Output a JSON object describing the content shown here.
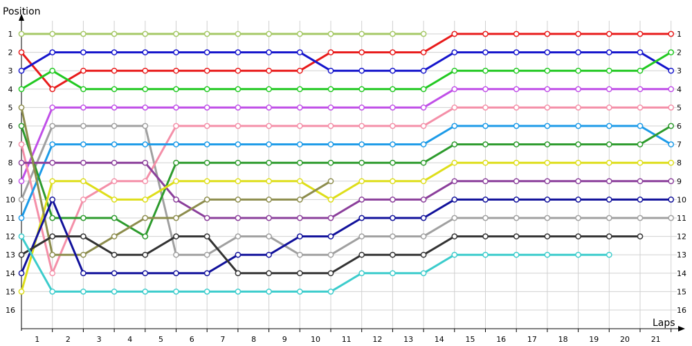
{
  "chart_data": {
    "type": "line",
    "title": "",
    "xlabel": "Laps",
    "ylabel": "Position",
    "grid": true,
    "y_inverted": true,
    "xlim": [
      0,
      21
    ],
    "ylim": [
      1,
      16
    ],
    "x_ticks": [
      1,
      2,
      3,
      4,
      5,
      6,
      7,
      8,
      9,
      10,
      11,
      12,
      13,
      14,
      15,
      16,
      17,
      18,
      19,
      20,
      21
    ],
    "y_ticks": [
      1,
      2,
      3,
      4,
      5,
      6,
      7,
      8,
      9,
      10,
      11,
      12,
      13,
      14,
      15,
      16
    ],
    "colors": {
      "grid": "#d0d0d0",
      "axis": "#000000"
    },
    "series": [
      {
        "color": "#a5c866",
        "points": [
          [
            0,
            1
          ],
          [
            1,
            1
          ],
          [
            2,
            1
          ],
          [
            3,
            1
          ],
          [
            4,
            1
          ],
          [
            5,
            1
          ],
          [
            6,
            1
          ],
          [
            7,
            1
          ],
          [
            8,
            1
          ],
          [
            9,
            1
          ],
          [
            10,
            1
          ],
          [
            11,
            1
          ],
          [
            12,
            1
          ],
          [
            13,
            1
          ]
        ]
      },
      {
        "color": "#e81b1b",
        "points": [
          [
            0,
            2
          ],
          [
            1,
            4
          ],
          [
            2,
            3
          ],
          [
            3,
            3
          ],
          [
            4,
            3
          ],
          [
            5,
            3
          ],
          [
            6,
            3
          ],
          [
            7,
            3
          ],
          [
            8,
            3
          ],
          [
            9,
            3
          ],
          [
            10,
            2
          ],
          [
            11,
            2
          ],
          [
            12,
            2
          ],
          [
            13,
            2
          ],
          [
            14,
            1
          ],
          [
            15,
            1
          ],
          [
            16,
            1
          ],
          [
            17,
            1
          ],
          [
            18,
            1
          ],
          [
            19,
            1
          ],
          [
            20,
            1
          ],
          [
            21,
            1
          ]
        ]
      },
      {
        "color": "#1515cc",
        "points": [
          [
            0,
            3
          ],
          [
            1,
            2
          ],
          [
            2,
            2
          ],
          [
            3,
            2
          ],
          [
            4,
            2
          ],
          [
            5,
            2
          ],
          [
            6,
            2
          ],
          [
            7,
            2
          ],
          [
            8,
            2
          ],
          [
            9,
            2
          ],
          [
            10,
            3
          ],
          [
            11,
            3
          ],
          [
            12,
            3
          ],
          [
            13,
            3
          ],
          [
            14,
            2
          ],
          [
            15,
            2
          ],
          [
            16,
            2
          ],
          [
            17,
            2
          ],
          [
            18,
            2
          ],
          [
            19,
            2
          ],
          [
            20,
            2
          ],
          [
            21,
            3
          ]
        ]
      },
      {
        "color": "#22c922",
        "points": [
          [
            0,
            4
          ],
          [
            1,
            3
          ],
          [
            2,
            4
          ],
          [
            3,
            4
          ],
          [
            4,
            4
          ],
          [
            5,
            4
          ],
          [
            6,
            4
          ],
          [
            7,
            4
          ],
          [
            8,
            4
          ],
          [
            9,
            4
          ],
          [
            10,
            4
          ],
          [
            11,
            4
          ],
          [
            12,
            4
          ],
          [
            13,
            4
          ],
          [
            14,
            3
          ],
          [
            15,
            3
          ],
          [
            16,
            3
          ],
          [
            17,
            3
          ],
          [
            18,
            3
          ],
          [
            19,
            3
          ],
          [
            20,
            3
          ],
          [
            21,
            2
          ]
        ]
      },
      {
        "color": "#c04fe8",
        "points": [
          [
            0,
            9
          ],
          [
            1,
            5
          ],
          [
            2,
            5
          ],
          [
            3,
            5
          ],
          [
            4,
            5
          ],
          [
            5,
            5
          ],
          [
            6,
            5
          ],
          [
            7,
            5
          ],
          [
            8,
            5
          ],
          [
            9,
            5
          ],
          [
            10,
            5
          ],
          [
            11,
            5
          ],
          [
            12,
            5
          ],
          [
            13,
            5
          ],
          [
            14,
            4
          ],
          [
            15,
            4
          ],
          [
            16,
            4
          ],
          [
            17,
            4
          ],
          [
            18,
            4
          ],
          [
            19,
            4
          ],
          [
            20,
            4
          ],
          [
            21,
            4
          ]
        ]
      },
      {
        "color": "#a0a0a0",
        "points": [
          [
            0,
            10
          ],
          [
            1,
            6
          ],
          [
            2,
            6
          ],
          [
            3,
            6
          ],
          [
            4,
            6
          ],
          [
            5,
            13
          ],
          [
            6,
            13
          ],
          [
            7,
            12
          ],
          [
            8,
            12
          ],
          [
            9,
            13
          ],
          [
            10,
            13
          ],
          [
            11,
            12
          ],
          [
            12,
            12
          ],
          [
            13,
            12
          ],
          [
            14,
            11
          ],
          [
            15,
            11
          ],
          [
            16,
            11
          ],
          [
            17,
            11
          ],
          [
            18,
            11
          ],
          [
            19,
            11
          ],
          [
            20,
            11
          ],
          [
            21,
            11
          ]
        ]
      },
      {
        "color": "#f48fa8",
        "points": [
          [
            0,
            7
          ],
          [
            1,
            14
          ],
          [
            2,
            10
          ],
          [
            3,
            9
          ],
          [
            4,
            9
          ],
          [
            5,
            6
          ],
          [
            6,
            6
          ],
          [
            7,
            6
          ],
          [
            8,
            6
          ],
          [
            9,
            6
          ],
          [
            10,
            6
          ],
          [
            11,
            6
          ],
          [
            12,
            6
          ],
          [
            13,
            6
          ],
          [
            14,
            5
          ],
          [
            15,
            5
          ],
          [
            16,
            5
          ],
          [
            17,
            5
          ],
          [
            18,
            5
          ],
          [
            19,
            5
          ],
          [
            20,
            5
          ],
          [
            21,
            5
          ]
        ]
      },
      {
        "color": "#1d9be8",
        "points": [
          [
            0,
            11
          ],
          [
            1,
            7
          ],
          [
            2,
            7
          ],
          [
            3,
            7
          ],
          [
            4,
            7
          ],
          [
            5,
            7
          ],
          [
            6,
            7
          ],
          [
            7,
            7
          ],
          [
            8,
            7
          ],
          [
            9,
            7
          ],
          [
            10,
            7
          ],
          [
            11,
            7
          ],
          [
            12,
            7
          ],
          [
            13,
            7
          ],
          [
            14,
            6
          ],
          [
            15,
            6
          ],
          [
            16,
            6
          ],
          [
            17,
            6
          ],
          [
            18,
            6
          ],
          [
            19,
            6
          ],
          [
            20,
            6
          ],
          [
            21,
            7
          ]
        ]
      },
      {
        "color": "#2d9b2d",
        "points": [
          [
            0,
            6
          ],
          [
            1,
            11
          ],
          [
            2,
            11
          ],
          [
            3,
            11
          ],
          [
            4,
            12
          ],
          [
            5,
            8
          ],
          [
            6,
            8
          ],
          [
            7,
            8
          ],
          [
            8,
            8
          ],
          [
            9,
            8
          ],
          [
            10,
            8
          ],
          [
            11,
            8
          ],
          [
            12,
            8
          ],
          [
            13,
            8
          ],
          [
            14,
            7
          ],
          [
            15,
            7
          ],
          [
            16,
            7
          ],
          [
            17,
            7
          ],
          [
            18,
            7
          ],
          [
            19,
            7
          ],
          [
            20,
            7
          ],
          [
            21,
            6
          ]
        ]
      },
      {
        "color": "#8b3f9b",
        "points": [
          [
            0,
            8
          ],
          [
            1,
            8
          ],
          [
            2,
            8
          ],
          [
            3,
            8
          ],
          [
            4,
            8
          ],
          [
            5,
            10
          ],
          [
            6,
            11
          ],
          [
            7,
            11
          ],
          [
            8,
            11
          ],
          [
            9,
            11
          ],
          [
            10,
            11
          ],
          [
            11,
            10
          ],
          [
            12,
            10
          ],
          [
            13,
            10
          ],
          [
            14,
            9
          ],
          [
            15,
            9
          ],
          [
            16,
            9
          ],
          [
            17,
            9
          ],
          [
            18,
            9
          ],
          [
            19,
            9
          ],
          [
            20,
            9
          ],
          [
            21,
            9
          ]
        ]
      },
      {
        "color": "#dede1a",
        "points": [
          [
            0,
            15
          ],
          [
            1,
            9
          ],
          [
            2,
            9
          ],
          [
            3,
            10
          ],
          [
            4,
            10
          ],
          [
            5,
            9
          ],
          [
            6,
            9
          ],
          [
            7,
            9
          ],
          [
            8,
            9
          ],
          [
            9,
            9
          ],
          [
            10,
            10
          ],
          [
            11,
            9
          ],
          [
            12,
            9
          ],
          [
            13,
            9
          ],
          [
            14,
            8
          ],
          [
            15,
            8
          ],
          [
            16,
            8
          ],
          [
            17,
            8
          ],
          [
            18,
            8
          ],
          [
            19,
            8
          ],
          [
            20,
            8
          ],
          [
            21,
            8
          ]
        ]
      },
      {
        "color": "#8d8d4d",
        "points": [
          [
            0,
            5
          ],
          [
            1,
            13
          ],
          [
            2,
            13
          ],
          [
            3,
            12
          ],
          [
            4,
            11
          ],
          [
            5,
            11
          ],
          [
            6,
            10
          ],
          [
            7,
            10
          ],
          [
            8,
            10
          ],
          [
            9,
            10
          ],
          [
            10,
            9
          ]
        ]
      },
      {
        "color": "#11119b",
        "points": [
          [
            0,
            14
          ],
          [
            1,
            10
          ],
          [
            2,
            14
          ],
          [
            3,
            14
          ],
          [
            4,
            14
          ],
          [
            5,
            14
          ],
          [
            6,
            14
          ],
          [
            7,
            13
          ],
          [
            8,
            13
          ],
          [
            9,
            12
          ],
          [
            10,
            12
          ],
          [
            11,
            11
          ],
          [
            12,
            11
          ],
          [
            13,
            11
          ],
          [
            14,
            10
          ],
          [
            15,
            10
          ],
          [
            16,
            10
          ],
          [
            17,
            10
          ],
          [
            18,
            10
          ],
          [
            19,
            10
          ],
          [
            20,
            10
          ],
          [
            21,
            10
          ]
        ]
      },
      {
        "color": "#333333",
        "points": [
          [
            0,
            13
          ],
          [
            1,
            12
          ],
          [
            2,
            12
          ],
          [
            3,
            13
          ],
          [
            4,
            13
          ],
          [
            5,
            12
          ],
          [
            6,
            12
          ],
          [
            7,
            14
          ],
          [
            8,
            14
          ],
          [
            9,
            14
          ],
          [
            10,
            14
          ],
          [
            11,
            13
          ],
          [
            12,
            13
          ],
          [
            13,
            13
          ],
          [
            14,
            12
          ],
          [
            15,
            12
          ],
          [
            16,
            12
          ],
          [
            17,
            12
          ],
          [
            18,
            12
          ],
          [
            19,
            12
          ],
          [
            20,
            12
          ]
        ]
      },
      {
        "color": "#3ccccc",
        "points": [
          [
            0,
            12
          ],
          [
            1,
            15
          ],
          [
            2,
            15
          ],
          [
            3,
            15
          ],
          [
            4,
            15
          ],
          [
            5,
            15
          ],
          [
            6,
            15
          ],
          [
            7,
            15
          ],
          [
            8,
            15
          ],
          [
            9,
            15
          ],
          [
            10,
            15
          ],
          [
            11,
            14
          ],
          [
            12,
            14
          ],
          [
            13,
            14
          ],
          [
            14,
            13
          ],
          [
            15,
            13
          ],
          [
            16,
            13
          ],
          [
            17,
            13
          ],
          [
            18,
            13
          ],
          [
            19,
            13
          ]
        ]
      }
    ]
  }
}
